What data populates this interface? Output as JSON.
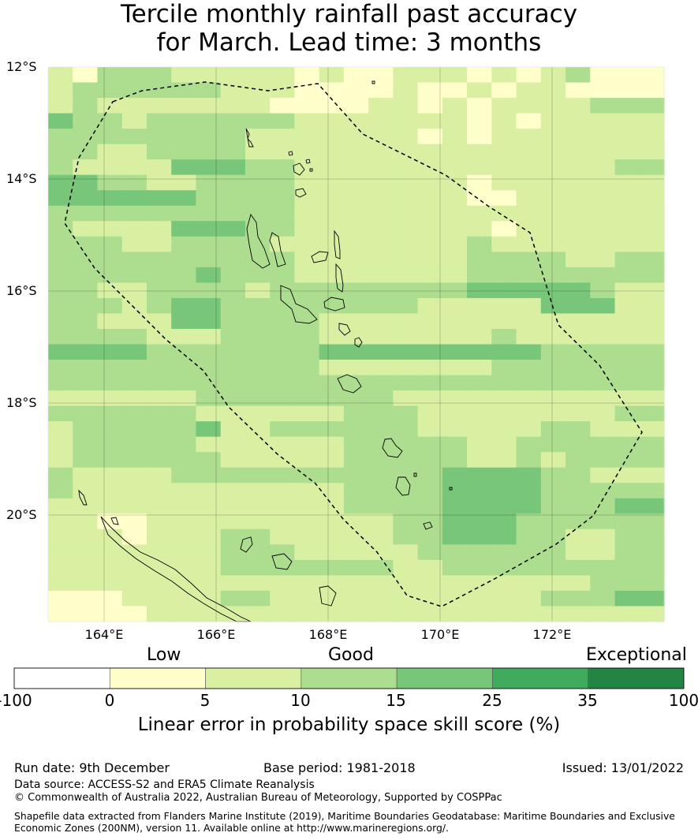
{
  "title": {
    "line1": "Tercile monthly rainfall past accuracy",
    "line2": "for March. Lead time: 3 months"
  },
  "map": {
    "latitude_labels": [
      "12°S",
      "14°S",
      "16°S",
      "18°S",
      "20°S"
    ],
    "longitude_labels": [
      "164°E",
      "166°E",
      "168°E",
      "170°E",
      "172°E"
    ],
    "lon_range": [
      163,
      174
    ],
    "lat_range": [
      -21.8,
      -12
    ],
    "grid_step_deg": 0.833,
    "color_classes": {
      "0": "#ffffff",
      "1": "#ffffcc",
      "2": "#d9f0a3",
      "3": "#addd8e",
      "4": "#78c679",
      "5": "#41ab5d",
      "6": "#238443"
    },
    "cells": [
      "2133322222121122212123111",
      "2333333222111121121221111",
      "2322222221111221212222333",
      "4332333333222222212122222",
      "3333333322222221212222222",
      "3322333322222222222222222",
      "3222244433222222222222233",
      "4433223333222222212222222",
      "4444443333222222211222222",
      "3333333333222222222222222",
      "3222244433222222221222222",
      "3332233332222222232222222",
      "3333333333222222233332233",
      "3333334333222222233333333",
      "3322333323333333344444322",
      "3332344333333332222244422",
      "3322244333322222222222222",
      "3333222333322222223222222",
      "4444333333344444444433333",
      "3333333333322222223333333",
      "3333333333333333333333333",
      "2222223333333322222222222",
      "3333332222223332222222233",
      "2333334223333332222233222",
      "2333332222223333322333333",
      "2333333222223333322323333",
      "3222233333333333444433222",
      "3222222222223333444433333",
      "2222222222223333444433344",
      "2211222222222233444333333",
      "2221222332222233444332233",
      "2222222333222223333332233",
      "2222222333333322333333333",
      "2222222222222222222222333",
      "1112222332222222222233344",
      "1111222222222222222222222"
    ]
  },
  "legend": {
    "categories": [
      "Low",
      "Good",
      "Exceptional"
    ],
    "ticks": [
      "-100",
      "0",
      "5",
      "10",
      "15",
      "25",
      "35",
      "100"
    ],
    "bins": [
      {
        "from": "-100",
        "to": "0",
        "color": "#ffffff"
      },
      {
        "from": "0",
        "to": "5",
        "color": "#ffffcc"
      },
      {
        "from": "5",
        "to": "10",
        "color": "#d9f0a3"
      },
      {
        "from": "10",
        "to": "15",
        "color": "#addd8e"
      },
      {
        "from": "15",
        "to": "25",
        "color": "#78c679"
      },
      {
        "from": "25",
        "to": "35",
        "color": "#41ab5d"
      },
      {
        "from": "35",
        "to": "100",
        "color": "#238443"
      }
    ],
    "label": "Linear error in probability space skill score (%)"
  },
  "footer": {
    "run_date": "Run date: 9th December",
    "base_period": "Base period: 1981-2018",
    "issued": "Issued: 13/01/2022",
    "data_source": "Data source: ACCESS-S2 and ERA5 Climate Reanalysis",
    "copyright": "© Commonwealth of Australia 2022, Australian Bureau of Meteorology, Supported by COSPPac",
    "shapefile_line1": "Shapefile data extracted from Flanders Marine Institute (2019), Maritime Boundaries Geodatabase: Maritime Boundaries and Exclusive",
    "shapefile_line2": "Economic Zones (200NM), version 11. Available online at http://www.marineregions.org/."
  }
}
